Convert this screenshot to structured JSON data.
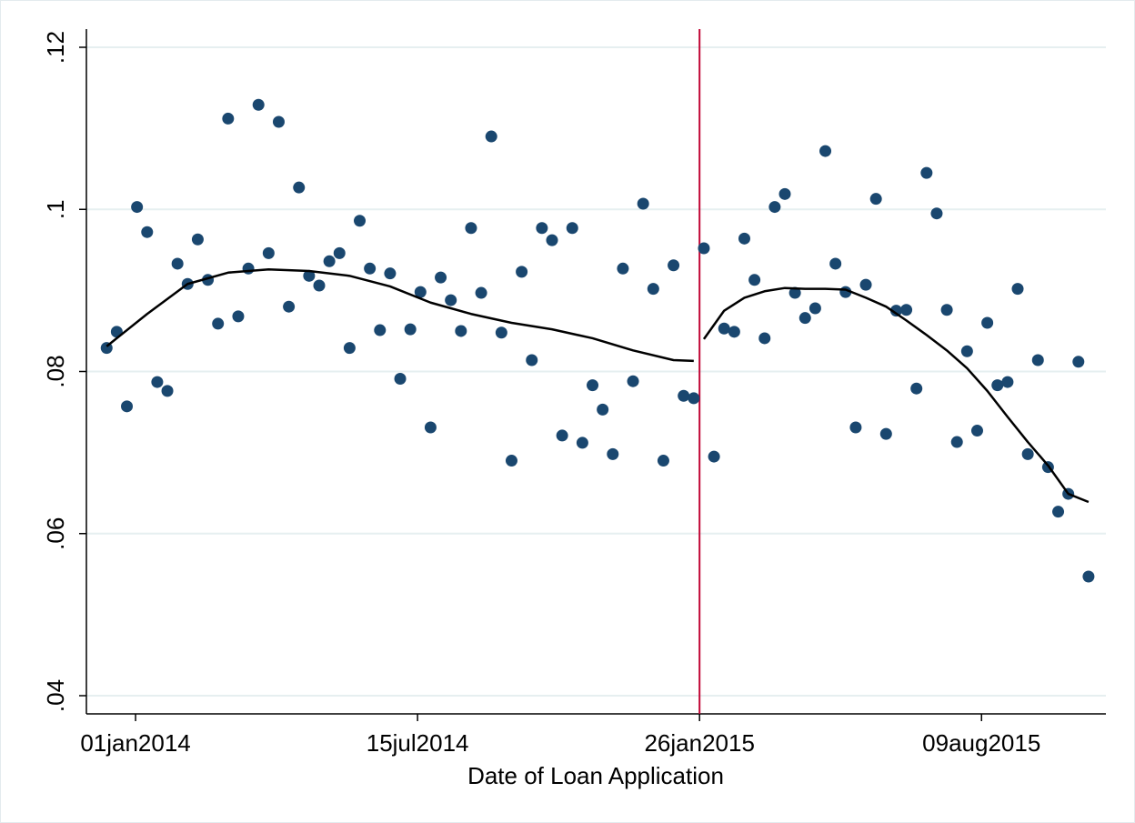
{
  "chart_data": {
    "type": "scatter",
    "xlabel": "Date of Loan Application",
    "xlim": [
      "2013-11-28",
      "2015-11-03"
    ],
    "xticks": [
      {
        "value": "2014-01-01",
        "label": "01jan2014"
      },
      {
        "value": "2014-07-15",
        "label": "15jul2014"
      },
      {
        "value": "2015-01-26",
        "label": "26jan2015"
      },
      {
        "value": "2015-08-09",
        "label": "09aug2015"
      }
    ],
    "ylim": [
      0.04,
      0.12
    ],
    "yticks": [
      {
        "value": 0.04,
        "label": ".04"
      },
      {
        "value": 0.06,
        "label": ".06"
      },
      {
        "value": 0.08,
        "label": ".08"
      },
      {
        "value": 0.1,
        "label": ".1"
      },
      {
        "value": 0.12,
        "label": ".12"
      }
    ],
    "grid": true,
    "grid_color": "#e6eff0",
    "vline": {
      "x": "2015-01-26",
      "color": "#c10534"
    },
    "series": [
      {
        "style": "markers",
        "color": "#1a476f",
        "x": [
          "2013-12-12",
          "2013-12-19",
          "2013-12-26",
          "2014-01-02",
          "2014-01-09",
          "2014-01-16",
          "2014-01-23",
          "2014-01-30",
          "2014-02-06",
          "2014-02-13",
          "2014-02-20",
          "2014-02-27",
          "2014-03-06",
          "2014-03-13",
          "2014-03-20",
          "2014-03-27",
          "2014-04-03",
          "2014-04-10",
          "2014-04-17",
          "2014-04-24",
          "2014-05-01",
          "2014-05-08",
          "2014-05-15",
          "2014-05-22",
          "2014-05-29",
          "2014-06-05",
          "2014-06-12",
          "2014-06-19",
          "2014-06-26",
          "2014-07-03",
          "2014-07-10",
          "2014-07-17",
          "2014-07-24",
          "2014-07-31",
          "2014-08-07",
          "2014-08-14",
          "2014-08-21",
          "2014-08-28",
          "2014-09-04",
          "2014-09-11",
          "2014-09-18",
          "2014-09-25",
          "2014-10-02",
          "2014-10-09",
          "2014-10-16",
          "2014-10-23",
          "2014-10-30",
          "2014-11-06",
          "2014-11-13",
          "2014-11-20",
          "2014-11-27",
          "2014-12-04",
          "2014-12-11",
          "2014-12-18",
          "2014-12-25",
          "2015-01-01",
          "2015-01-08",
          "2015-01-15",
          "2015-01-22"
        ],
        "values": [
          0.0829,
          0.0849,
          0.0757,
          0.1003,
          0.0972,
          0.0787,
          0.0776,
          0.0933,
          0.0908,
          0.0963,
          0.0913,
          0.0859,
          0.1112,
          0.0868,
          0.0927,
          0.1129,
          0.0946,
          0.1108,
          0.088,
          0.1027,
          0.0918,
          0.0906,
          0.0936,
          0.0946,
          0.0829,
          0.0986,
          0.0927,
          0.0851,
          0.0921,
          0.0791,
          0.0852,
          0.0898,
          0.0731,
          0.0916,
          0.0888,
          0.085,
          0.0977,
          0.0897,
          0.109,
          0.0848,
          0.069,
          0.0923,
          0.0814,
          0.0977,
          0.0962,
          0.0721,
          0.0977,
          0.0712,
          0.0783,
          0.0753,
          0.0698,
          0.0927,
          0.0788,
          0.1007,
          0.0902,
          0.069,
          0.0931,
          0.077,
          0.0767
        ]
      },
      {
        "style": "markers",
        "color": "#1a476f",
        "x": [
          "2015-01-29",
          "2015-02-05",
          "2015-02-12",
          "2015-02-19",
          "2015-02-26",
          "2015-03-05",
          "2015-03-12",
          "2015-03-19",
          "2015-03-26",
          "2015-04-02",
          "2015-04-09",
          "2015-04-16",
          "2015-04-23",
          "2015-04-30",
          "2015-05-07",
          "2015-05-14",
          "2015-05-21",
          "2015-05-28",
          "2015-06-04",
          "2015-06-11",
          "2015-06-18",
          "2015-06-25",
          "2015-07-02",
          "2015-07-09",
          "2015-07-16",
          "2015-07-23",
          "2015-07-30",
          "2015-08-06",
          "2015-08-13",
          "2015-08-20",
          "2015-08-27",
          "2015-09-03",
          "2015-09-10",
          "2015-09-17",
          "2015-09-24",
          "2015-10-01",
          "2015-10-08",
          "2015-10-15",
          "2015-10-22"
        ],
        "values": [
          0.0952,
          0.0695,
          0.0853,
          0.0849,
          0.0964,
          0.0913,
          0.0841,
          0.1003,
          0.1019,
          0.0897,
          0.0866,
          0.0878,
          0.1072,
          0.0933,
          0.0898,
          0.0731,
          0.0907,
          0.1013,
          0.0723,
          0.0875,
          0.0876,
          0.0779,
          0.1045,
          0.0995,
          0.0876,
          0.0713,
          0.0825,
          0.0727,
          0.086,
          0.0783,
          0.0787,
          0.0902,
          0.0698,
          0.0814,
          0.0682,
          0.0627,
          0.0649,
          0.0812,
          0.0547
        ]
      },
      {
        "style": "line",
        "color": "#000000",
        "x": [
          "2013-12-12",
          "2014-01-09",
          "2014-02-06",
          "2014-03-06",
          "2014-04-03",
          "2014-05-01",
          "2014-05-29",
          "2014-06-26",
          "2014-07-24",
          "2014-08-21",
          "2014-09-18",
          "2014-10-16",
          "2014-11-13",
          "2014-12-11",
          "2015-01-08",
          "2015-01-22"
        ],
        "values": [
          0.0831,
          0.0871,
          0.0908,
          0.0922,
          0.0926,
          0.0924,
          0.0918,
          0.0905,
          0.0885,
          0.0871,
          0.086,
          0.0852,
          0.0841,
          0.0826,
          0.0814,
          0.0813
        ]
      },
      {
        "style": "line",
        "color": "#000000",
        "x": [
          "2015-01-29",
          "2015-02-12",
          "2015-02-26",
          "2015-03-12",
          "2015-03-26",
          "2015-04-09",
          "2015-04-23",
          "2015-05-07",
          "2015-05-21",
          "2015-06-04",
          "2015-06-18",
          "2015-07-02",
          "2015-07-16",
          "2015-07-30",
          "2015-08-13",
          "2015-08-27",
          "2015-09-10",
          "2015-09-24",
          "2015-10-08",
          "2015-10-22"
        ],
        "values": [
          0.084,
          0.0875,
          0.0891,
          0.0899,
          0.0903,
          0.0902,
          0.0902,
          0.0901,
          0.0891,
          0.088,
          0.0863,
          0.0845,
          0.0826,
          0.0804,
          0.0776,
          0.0744,
          0.0713,
          0.0684,
          0.0649,
          0.0639
        ]
      }
    ]
  }
}
